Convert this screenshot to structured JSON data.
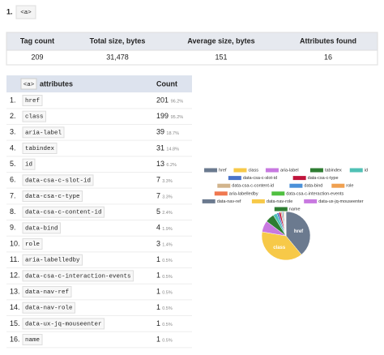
{
  "header": {
    "index": "1.",
    "tag": "<a>"
  },
  "summary": {
    "headers": [
      "Tag count",
      "Total size, bytes",
      "Average size, bytes",
      "Attributes found"
    ],
    "values": [
      "209",
      "31,478",
      "151",
      "16"
    ]
  },
  "attributes": {
    "tag": "<a>",
    "title": "attributes",
    "count_header": "Count",
    "rows": [
      {
        "index": "1.",
        "name": "href",
        "count": 201,
        "percent": "96.2%"
      },
      {
        "index": "2.",
        "name": "class",
        "count": 199,
        "percent": "95.2%"
      },
      {
        "index": "3.",
        "name": "aria-label",
        "count": 39,
        "percent": "18.7%"
      },
      {
        "index": "4.",
        "name": "tabindex",
        "count": 31,
        "percent": "14.8%"
      },
      {
        "index": "5.",
        "name": "id",
        "count": 13,
        "percent": "6.2%"
      },
      {
        "index": "6.",
        "name": "data-csa-c-slot-id",
        "count": 7,
        "percent": "3.3%"
      },
      {
        "index": "7.",
        "name": "data-csa-c-type",
        "count": 7,
        "percent": "3.3%"
      },
      {
        "index": "8.",
        "name": "data-csa-c-content-id",
        "count": 5,
        "percent": "2.4%"
      },
      {
        "index": "9.",
        "name": "data-bind",
        "count": 4,
        "percent": "1.9%"
      },
      {
        "index": "10.",
        "name": "role",
        "count": 3,
        "percent": "1.4%"
      },
      {
        "index": "11.",
        "name": "aria-labelledby",
        "count": 1,
        "percent": "0.5%"
      },
      {
        "index": "12.",
        "name": "data-csa-c-interaction-events",
        "count": 1,
        "percent": "0.5%"
      },
      {
        "index": "13.",
        "name": "data-nav-ref",
        "count": 1,
        "percent": "0.5%"
      },
      {
        "index": "14.",
        "name": "data-nav-role",
        "count": 1,
        "percent": "0.5%"
      },
      {
        "index": "15.",
        "name": "data-ux-jq-mouseenter",
        "count": 1,
        "percent": "0.5%"
      },
      {
        "index": "16.",
        "name": "name",
        "count": 1,
        "percent": "0.5%"
      }
    ]
  },
  "pie_colors": [
    "#6b7a8f",
    "#f7c948",
    "#c879e0",
    "#2e7d32",
    "#4fc1b5",
    "#4a74c9",
    "#c0143c",
    "#d2b48c",
    "#4a90d9",
    "#f0a050",
    "#f07850",
    "#50c040",
    "#6b7a8f",
    "#f7c948",
    "#c879e0",
    "#2e7d32"
  ]
}
